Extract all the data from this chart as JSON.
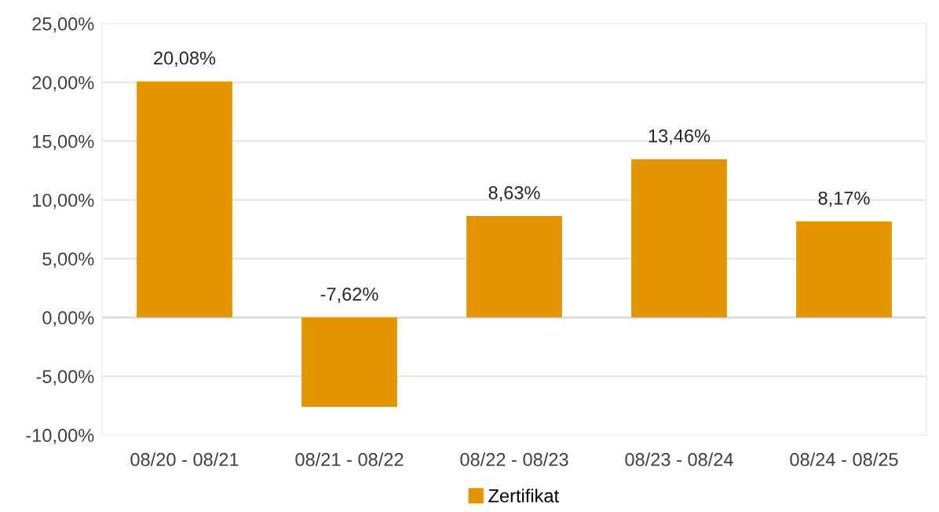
{
  "chart_data": {
    "type": "bar",
    "categories": [
      "08/20 - 08/21",
      "08/21 - 08/22",
      "08/22 - 08/23",
      "08/23 - 08/24",
      "08/24 - 08/25"
    ],
    "series": [
      {
        "name": "Zertifikat",
        "color": "#e39500",
        "values": [
          20.08,
          -7.62,
          8.63,
          13.46,
          8.17
        ],
        "value_labels": [
          "20,08%",
          "-7,62%",
          "8,63%",
          "13,46%",
          "8,17%"
        ]
      }
    ],
    "ylim": [
      -10,
      25
    ],
    "yticks": [
      {
        "value": -10,
        "label": "-10,00%"
      },
      {
        "value": -5,
        "label": "-5,00%"
      },
      {
        "value": 0,
        "label": "0,00%"
      },
      {
        "value": 5,
        "label": "5,00%"
      },
      {
        "value": 10,
        "label": "10,00%"
      },
      {
        "value": 15,
        "label": "15,00%"
      },
      {
        "value": 20,
        "label": "20,00%"
      },
      {
        "value": 25,
        "label": "25,00%"
      }
    ],
    "grid": "y",
    "legend": "bottom"
  }
}
